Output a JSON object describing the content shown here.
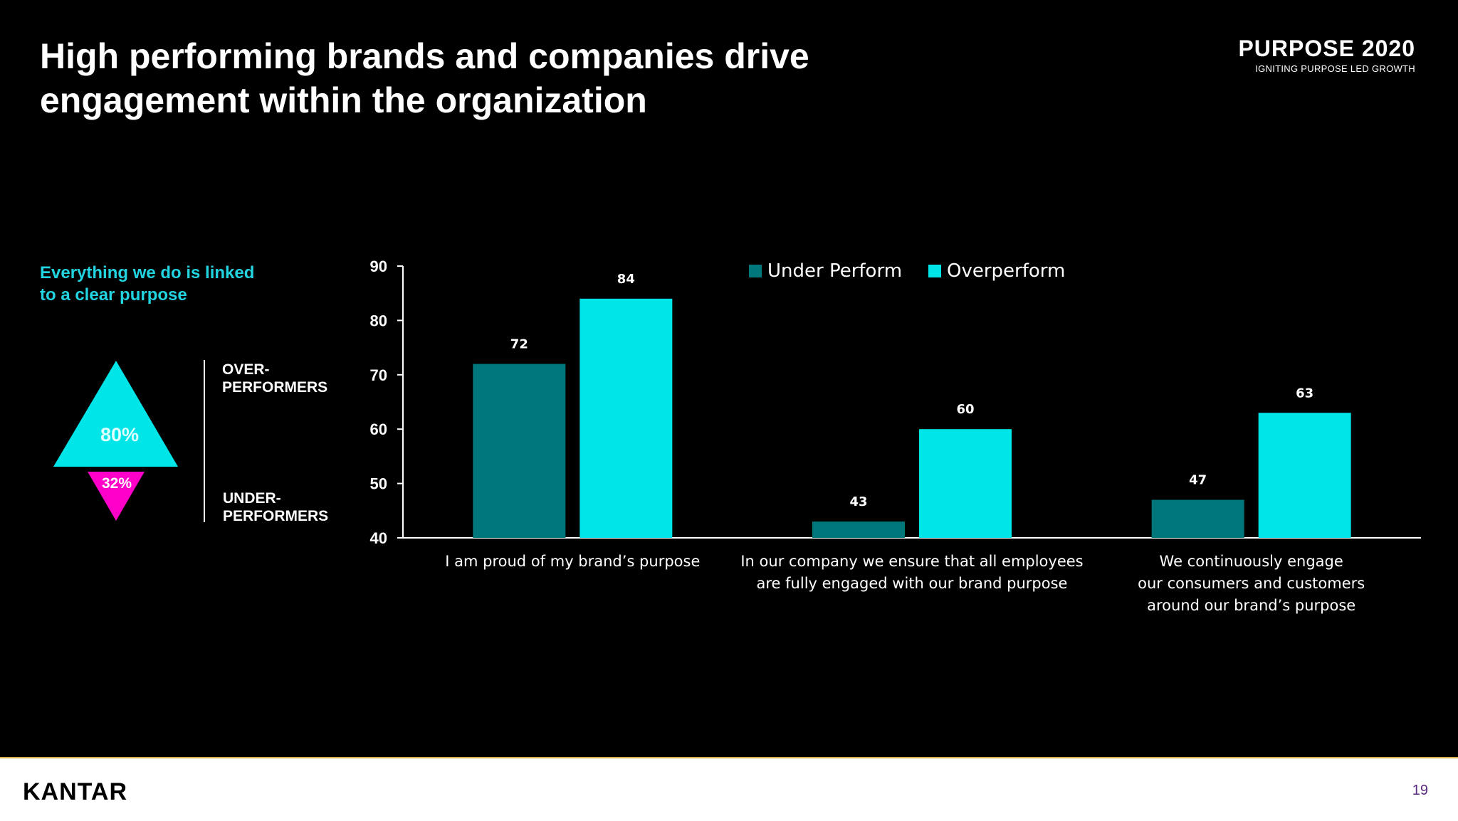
{
  "title": {
    "line1": "High performing brands and companies drive",
    "line2": "engagement within the organization"
  },
  "brand": {
    "main": "PURPOSE 2020",
    "sub": "IGNITING PURPOSE LED GROWTH"
  },
  "left_panel": {
    "heading_line1": "Everything we do is linked",
    "heading_line2": "to a clear purpose",
    "over_label_line1": "OVER-",
    "over_label_line2": "PERFORMERS",
    "under_label_line1": "UNDER-",
    "under_label_line2": "PERFORMERS",
    "over_pct": "80%",
    "under_pct": "32%",
    "over_color": "#00e5e8",
    "under_color": "#ff00c8"
  },
  "chart_data": {
    "type": "bar",
    "categories": [
      [
        "I am proud of my brand’s purpose"
      ],
      [
        "In our company we ensure that all employees",
        "are fully engaged with our brand purpose"
      ],
      [
        "We continuously engage",
        "our consumers and customers",
        "around our brand’s purpose"
      ]
    ],
    "series": [
      {
        "name": "Under Perform",
        "values": [
          72,
          43,
          47
        ],
        "color": "#00777a"
      },
      {
        "name": "Overperform",
        "values": [
          84,
          60,
          63
        ],
        "color": "#00e5e8"
      }
    ],
    "ylim": [
      40,
      90
    ],
    "yticks": [
      40,
      50,
      60,
      70,
      80,
      90
    ],
    "legend_position": "top",
    "grid": false
  },
  "footer": {
    "logo": "KANTAR",
    "page": "19"
  }
}
